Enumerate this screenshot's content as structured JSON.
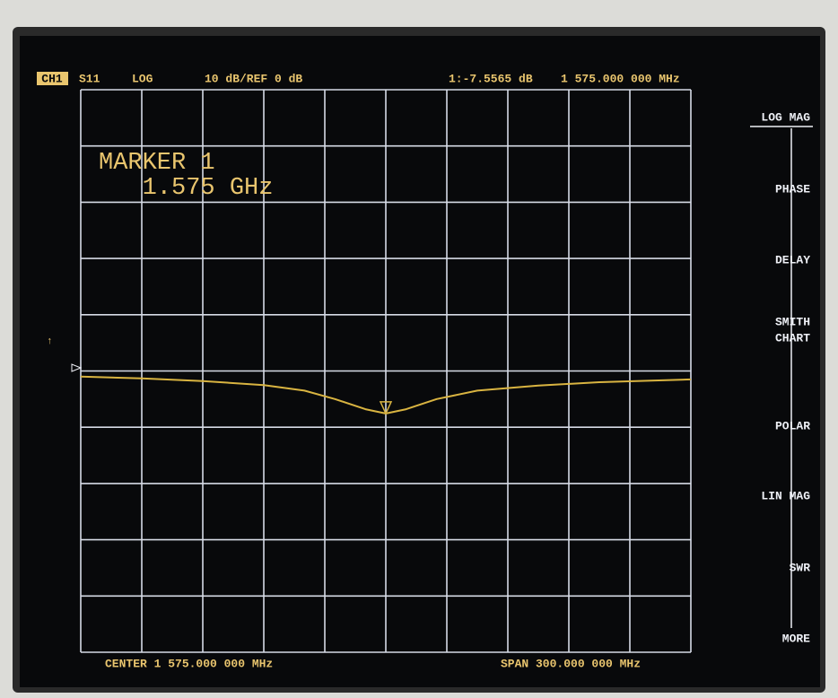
{
  "chart_data": {
    "type": "line",
    "header": {
      "channel": "CH1",
      "parameter": "S11",
      "format": "LOG",
      "scale": "10 dB/REF 0 dB",
      "marker_value": "1:-7.5565 dB",
      "marker_frequency": "1 575.000 000 MHz"
    },
    "marker_annotation": [
      "MARKER 1",
      "   1.575 GHz"
    ],
    "footer": {
      "center": "CENTER 1 575.000 000 MHz",
      "span": "SPAN 300.000 000 MHz"
    },
    "softkeys": [
      [
        "LOG MAG"
      ],
      [
        "PHASE"
      ],
      [
        "DELAY"
      ],
      [
        "SMITH",
        "CHART"
      ],
      [
        "POLAR"
      ],
      [
        "LIN MAG"
      ],
      [
        "SWR"
      ],
      [
        "MORE"
      ]
    ],
    "x": [
      1425,
      1455,
      1485,
      1515,
      1535,
      1550,
      1565,
      1575,
      1585,
      1600,
      1620,
      1650,
      1680,
      1725
    ],
    "series": [
      {
        "name": "S11",
        "color": "#d9b441",
        "values": [
          -1.0,
          -1.3,
          -1.8,
          -2.5,
          -3.5,
          -5.0,
          -6.8,
          -7.5565,
          -6.8,
          -5.0,
          -3.5,
          -2.6,
          -2.0,
          -1.5
        ]
      }
    ],
    "marker_index": 7,
    "xlim": [
      1425,
      1725
    ],
    "ylim": [
      -50,
      50
    ],
    "xticks": [
      1425,
      1455,
      1485,
      1515,
      1545,
      1575,
      1605,
      1635,
      1665,
      1695,
      1725
    ],
    "yticks": [
      -50,
      -40,
      -30,
      -20,
      -10,
      0,
      10,
      20,
      30,
      40,
      50
    ],
    "grid": true,
    "grid_color": "#d6dbe6"
  }
}
